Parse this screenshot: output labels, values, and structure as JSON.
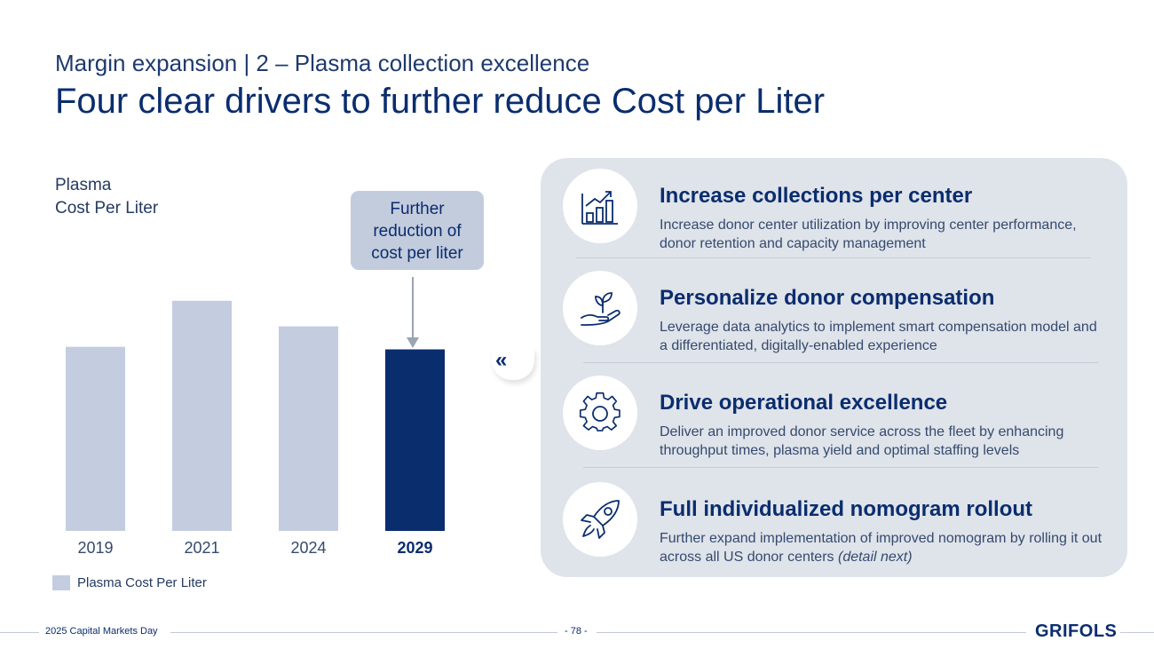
{
  "header": {
    "subtitle": "Margin expansion | 2 – Plasma collection excellence",
    "title": "Four clear drivers to further reduce Cost per Liter"
  },
  "chart_data": {
    "type": "bar",
    "title_lines": [
      "Plasma",
      "Cost Per Liter"
    ],
    "categories": [
      "2019",
      "2021",
      "2024",
      "2029"
    ],
    "values": [
      0.72,
      0.9,
      0.8,
      0.71
    ],
    "ylim": [
      0,
      1
    ],
    "highlight_index": 3,
    "bar_color": "#c3cddf",
    "highlight_color": "#0a2d6e",
    "legend": [
      "Plasma Cost Per Liter"
    ],
    "legend_position": "bottom-left",
    "annotation": [
      "Further",
      "reduction of",
      "cost per liter"
    ]
  },
  "drivers": [
    {
      "icon": "growth-chart-icon",
      "title": "Increase collections per center",
      "text": "Increase donor center utilization by improving center performance, donor retention and capacity management"
    },
    {
      "icon": "hand-plant-icon",
      "title": "Personalize donor compensation",
      "text": "Leverage data analytics to implement smart compensation model and a differentiated, digitally-enabled experience"
    },
    {
      "icon": "gear-icon",
      "title": "Drive operational excellence",
      "text": "Deliver an improved donor service across the fleet by enhancing throughput times, plasma yield and optimal staffing levels"
    },
    {
      "icon": "rocket-icon",
      "title": "Full individualized nomogram rollout",
      "text": "Further expand implementation of improved nomogram by rolling it out across all US donor centers",
      "text_italic": "(detail next)"
    }
  ],
  "chevron": "«",
  "footer": {
    "event": "2025 Capital Markets Day",
    "page": "- 78 -",
    "logo": "GRIFOLS"
  }
}
